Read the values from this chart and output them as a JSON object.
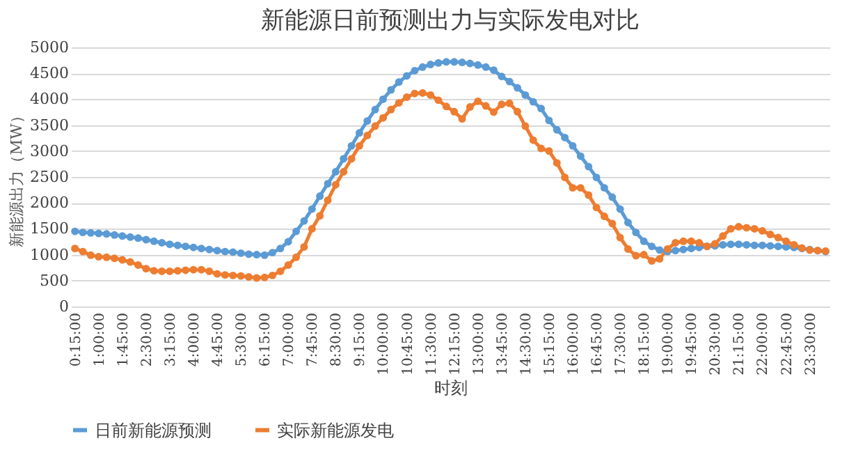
{
  "chart_data": {
    "type": "line",
    "title": "新能源日前预测出力与实际发电对比",
    "xlabel": "时刻",
    "ylabel": "新能源出力（MW）",
    "categories": [
      "0:15:00",
      null,
      null,
      "1:00:00",
      null,
      null,
      "1:45:00",
      null,
      null,
      "2:30:00",
      null,
      null,
      "3:15:00",
      null,
      null,
      "4:00:00",
      null,
      null,
      "4:45:00",
      null,
      null,
      "5:30:00",
      null,
      null,
      "6:15:00",
      null,
      null,
      "7:00:00",
      null,
      null,
      "7:45:00",
      null,
      null,
      "8:30:00",
      null,
      null,
      "9:15:00",
      null,
      null,
      "10:00:00",
      null,
      null,
      "10:45:00",
      null,
      null,
      "11:30:00",
      null,
      null,
      "12:15:00",
      null,
      null,
      "13:00:00",
      null,
      null,
      "13:45:00",
      null,
      null,
      "14:30:00",
      null,
      null,
      "15:15:00",
      null,
      null,
      "16:00:00",
      null,
      null,
      "16:45:00",
      null,
      null,
      "17:30:00",
      null,
      null,
      "18:15:00",
      null,
      null,
      "19:00:00",
      null,
      null,
      "19:45:00",
      null,
      null,
      "20:30:00",
      null,
      null,
      "21:15:00",
      null,
      null,
      "22:00:00",
      null,
      null,
      "22:45:00",
      null,
      null,
      "23:30:00",
      null,
      null
    ],
    "series": [
      {
        "name": "日前新能源预测",
        "color": "#5b9bd5",
        "values": [
          1450,
          1430,
          1420,
          1410,
          1400,
          1380,
          1360,
          1340,
          1320,
          1290,
          1260,
          1230,
          1200,
          1180,
          1160,
          1140,
          1120,
          1100,
          1080,
          1060,
          1050,
          1030,
          1010,
          1000,
          990,
          1040,
          1120,
          1250,
          1450,
          1650,
          1880,
          2130,
          2370,
          2600,
          2850,
          3100,
          3350,
          3580,
          3800,
          4000,
          4180,
          4330,
          4450,
          4550,
          4620,
          4670,
          4700,
          4720,
          4720,
          4710,
          4690,
          4660,
          4620,
          4560,
          4440,
          4340,
          4220,
          4080,
          3950,
          3820,
          3590,
          3410,
          3260,
          3100,
          2900,
          2700,
          2490,
          2290,
          2110,
          1880,
          1620,
          1430,
          1260,
          1160,
          1090,
          1060,
          1080,
          1100,
          1120,
          1140,
          1160,
          1170,
          1190,
          1200,
          1200,
          1190,
          1180,
          1180,
          1170,
          1160,
          1150,
          1140,
          1120,
          1100,
          1080,
          1060
        ]
      },
      {
        "name": "实际新能源发电",
        "color": "#ed7d31",
        "values": [
          1120,
          1060,
          990,
          960,
          950,
          930,
          900,
          860,
          800,
          730,
          690,
          680,
          680,
          690,
          700,
          710,
          710,
          680,
          630,
          610,
          600,
          590,
          570,
          550,
          560,
          600,
          680,
          800,
          950,
          1150,
          1500,
          1750,
          2050,
          2350,
          2600,
          2850,
          3100,
          3300,
          3480,
          3640,
          3800,
          3930,
          4040,
          4110,
          4120,
          4080,
          3980,
          3860,
          3760,
          3620,
          3850,
          3960,
          3870,
          3750,
          3900,
          3920,
          3760,
          3480,
          3210,
          3050,
          3000,
          2770,
          2490,
          2290,
          2290,
          2150,
          1910,
          1740,
          1600,
          1330,
          1110,
          980,
          1000,
          880,
          920,
          1110,
          1230,
          1260,
          1260,
          1230,
          1160,
          1210,
          1360,
          1500,
          1540,
          1520,
          1500,
          1460,
          1390,
          1330,
          1260,
          1190,
          1130,
          1090,
          1080,
          1070
        ]
      }
    ],
    "ylim": [
      0,
      5000
    ],
    "yticks": [
      0,
      500,
      1000,
      1500,
      2000,
      2500,
      3000,
      3500,
      4000,
      4500,
      5000
    ],
    "grid": "y",
    "legend": "bottom",
    "marker": "circle",
    "line_style": "solid"
  }
}
